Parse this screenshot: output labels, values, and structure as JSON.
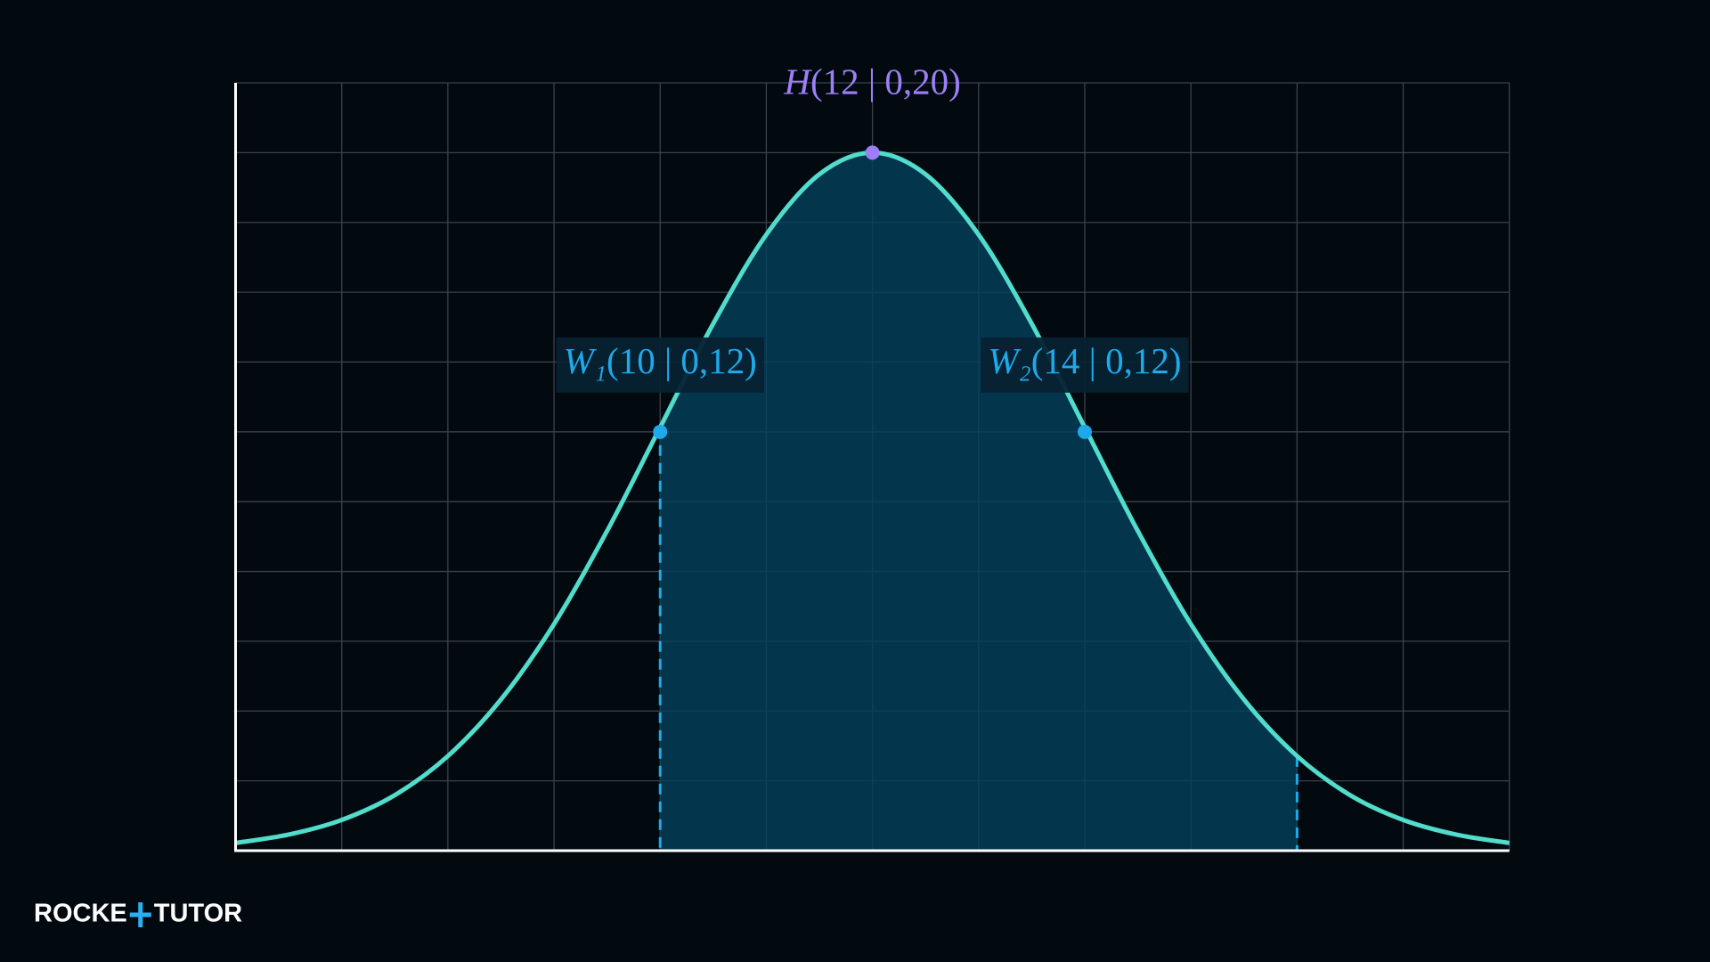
{
  "chart_data": {
    "type": "line",
    "x": [
      6,
      6.5,
      7,
      7.5,
      8,
      8.5,
      9,
      9.5,
      10,
      10.5,
      11,
      11.5,
      12,
      12.5,
      13,
      13.5,
      14,
      14.5,
      15,
      15.5,
      16,
      16.5,
      17,
      17.5,
      18
    ],
    "series": [
      {
        "color": "#52dccb",
        "values": [
          0.0022,
          0.0046,
          0.0088,
          0.0159,
          0.0271,
          0.0433,
          0.0649,
          0.0916,
          0.1213,
          0.151,
          0.1765,
          0.1938,
          0.2,
          0.1938,
          0.1765,
          0.151,
          0.1213,
          0.0916,
          0.0649,
          0.0433,
          0.0271,
          0.0159,
          0.0088,
          0.0046,
          0.0022
        ]
      }
    ],
    "shade": [
      10,
      16
    ],
    "shade_color": "#04415c",
    "xlim": [
      6,
      18
    ],
    "ylim": [
      0,
      0.22
    ],
    "xticks": [
      6,
      7,
      8,
      9,
      10,
      11,
      12,
      13,
      14,
      15,
      16,
      17,
      18
    ],
    "yticks": [
      0,
      0.02,
      0.04,
      0.06,
      0.08,
      0.1,
      0.12,
      0.14,
      0.16,
      0.18,
      0.2,
      0.22
    ],
    "grid": true,
    "tick_labels": false,
    "points": [
      {
        "name": "H",
        "coords": "(12 | 0,20)",
        "x": 12,
        "y": 0.2,
        "color": "#9c7ff5",
        "boxed": false
      },
      {
        "name": "W₁",
        "coords": "(10 | 0,12)",
        "x": 10,
        "y": 0.12,
        "color": "#1ea9ea",
        "boxed": true
      },
      {
        "name": "W₂",
        "coords": "(14 | 0,12)",
        "x": 14,
        "y": 0.12,
        "color": "#1ea9ea",
        "boxed": true
      }
    ]
  },
  "logo": {
    "left": "ROCKE",
    "right": "TUTOR"
  }
}
